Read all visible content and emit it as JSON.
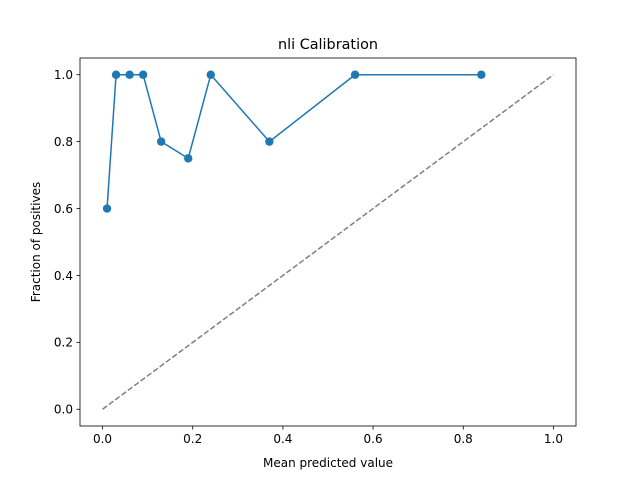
{
  "chart_data": {
    "type": "line",
    "title": "nli Calibration",
    "xlabel": "Mean predicted value",
    "ylabel": "Fraction of positives",
    "xlim": [
      -0.05,
      1.05
    ],
    "ylim": [
      -0.05,
      1.05
    ],
    "xticks": [
      0.0,
      0.2,
      0.4,
      0.6,
      0.8,
      1.0
    ],
    "xtick_labels": [
      "0.0",
      "0.2",
      "0.4",
      "0.6",
      "0.8",
      "1.0"
    ],
    "yticks": [
      0.0,
      0.2,
      0.4,
      0.6,
      0.8,
      1.0
    ],
    "ytick_labels": [
      "0.0",
      "0.2",
      "0.4",
      "0.6",
      "0.8",
      "1.0"
    ],
    "grid": false,
    "series": [
      {
        "style": "line-with-markers",
        "color": "#1f77b4",
        "x": [
          0.01,
          0.03,
          0.06,
          0.09,
          0.13,
          0.19,
          0.24,
          0.37,
          0.56,
          0.84
        ],
        "y": [
          0.6,
          1.0,
          1.0,
          1.0,
          0.8,
          0.75,
          1.0,
          0.8,
          1.0,
          1.0
        ]
      },
      {
        "style": "dashed-reference-line",
        "color": "#7f7f7f",
        "x": [
          0.0,
          1.0
        ],
        "y": [
          0.0,
          1.0
        ]
      }
    ]
  }
}
